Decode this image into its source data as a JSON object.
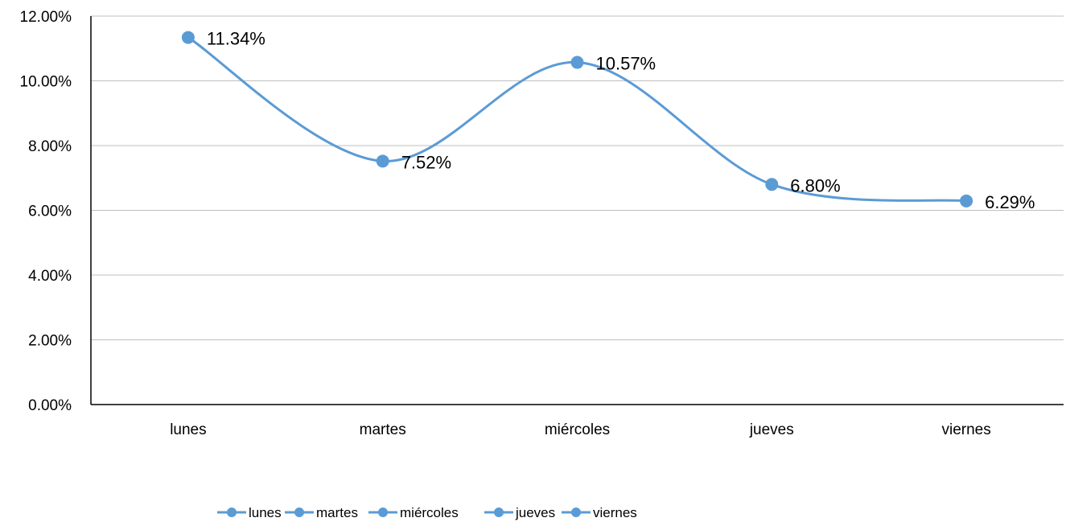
{
  "chart_data": {
    "type": "line",
    "smooth": true,
    "categories": [
      "lunes",
      "martes",
      "miércoles",
      "jueves",
      "viernes"
    ],
    "values": [
      11.34,
      7.52,
      10.57,
      6.8,
      6.29
    ],
    "data_labels": [
      "11.34%",
      "7.52%",
      "10.57%",
      "6.80%",
      "6.29%"
    ],
    "y_ticks": [
      "0.00%",
      "2.00%",
      "4.00%",
      "6.00%",
      "8.00%",
      "10.00%",
      "12.00%"
    ],
    "ylim": [
      0,
      12
    ],
    "grid": true,
    "legend": {
      "position": "bottom",
      "entries": [
        "lunes",
        "martes",
        "miércoles",
        "jueves",
        "viernes"
      ]
    },
    "colors": {
      "series": "#5B9BD5",
      "grid": "#BFBFBF",
      "axis": "#000000",
      "text": "#000000"
    }
  }
}
